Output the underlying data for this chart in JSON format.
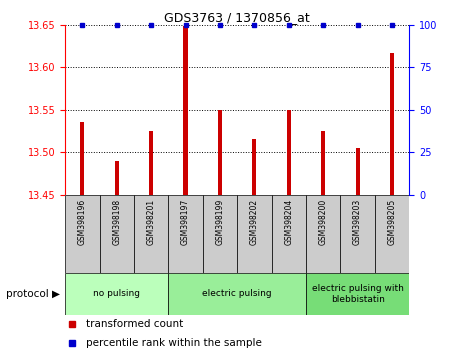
{
  "title": "GDS3763 / 1370856_at",
  "samples": [
    "GSM398196",
    "GSM398198",
    "GSM398201",
    "GSM398197",
    "GSM398199",
    "GSM398202",
    "GSM398204",
    "GSM398200",
    "GSM398203",
    "GSM398205"
  ],
  "red_values": [
    13.535,
    13.49,
    13.525,
    13.648,
    13.55,
    13.515,
    13.55,
    13.525,
    13.505,
    13.617
  ],
  "blue_values": [
    100,
    100,
    100,
    100,
    100,
    100,
    100,
    100,
    100,
    100
  ],
  "ylim_left": [
    13.45,
    13.65
  ],
  "ylim_right": [
    0,
    100
  ],
  "yticks_left": [
    13.45,
    13.5,
    13.55,
    13.6,
    13.65
  ],
  "yticks_right": [
    0,
    25,
    50,
    75,
    100
  ],
  "grid_lines": [
    13.5,
    13.55,
    13.6,
    13.65
  ],
  "groups": [
    {
      "label": "no pulsing",
      "start": 0,
      "end": 3,
      "color": "#bbffbb"
    },
    {
      "label": "electric pulsing",
      "start": 3,
      "end": 7,
      "color": "#99ee99"
    },
    {
      "label": "electric pulsing with\nblebbistatin",
      "start": 7,
      "end": 10,
      "color": "#77dd77"
    }
  ],
  "red_color": "#cc0000",
  "blue_color": "#0000cc",
  "sample_box_color": "#cccccc",
  "legend_red_label": "transformed count",
  "legend_blue_label": "percentile rank within the sample",
  "protocol_label": "protocol"
}
